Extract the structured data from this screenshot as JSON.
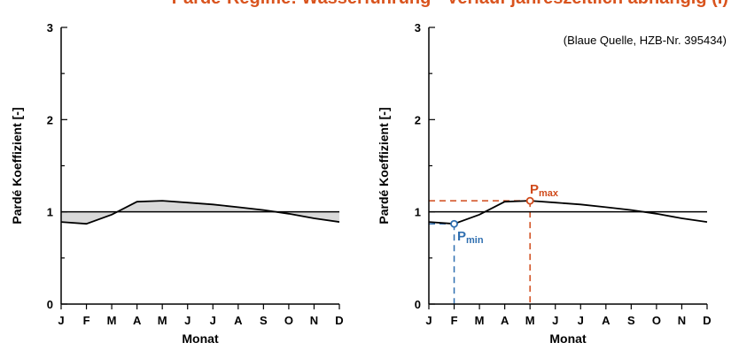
{
  "header": {
    "title": "Pardé-Regime: Wasserführung - Verlauf jahreszeitlich abhängig (I)",
    "subtitle": "(Blaue Quelle, HZB-Nr. 395434)",
    "title_color": "#d9541e"
  },
  "annotations": {
    "pmax": "P",
    "pmax_sub": "max",
    "pmin": "P",
    "pmin_sub": "min",
    "pmax_color": "#d04a1a",
    "pmin_color": "#2f6fb0"
  },
  "chart_data": [
    {
      "type": "area",
      "title": "",
      "xlabel": "Monat",
      "ylabel": "Pardé Koeffizient [-]",
      "categories": [
        "J",
        "F",
        "M",
        "A",
        "M",
        "J",
        "J",
        "A",
        "S",
        "O",
        "N",
        "D"
      ],
      "series": [
        {
          "values": [
            0.89,
            0.87,
            0.97,
            1.11,
            1.12,
            1.1,
            1.08,
            1.05,
            1.02,
            0.98,
            0.93,
            0.89
          ]
        }
      ],
      "reference_line": 1,
      "ylim": [
        0,
        3
      ],
      "yticks": [
        0,
        1,
        2,
        3
      ],
      "fill_color": "#d9d9d9",
      "grid": false
    },
    {
      "type": "line",
      "title": "",
      "xlabel": "Monat",
      "ylabel": "Pardé Koeffizient [-]",
      "categories": [
        "J",
        "F",
        "M",
        "A",
        "M",
        "J",
        "J",
        "A",
        "S",
        "O",
        "N",
        "D"
      ],
      "series": [
        {
          "values": [
            0.89,
            0.87,
            0.97,
            1.11,
            1.12,
            1.1,
            1.08,
            1.05,
            1.02,
            0.98,
            0.93,
            0.89
          ]
        }
      ],
      "reference_line": 1,
      "markers": {
        "pmax": {
          "month": "M",
          "value": 1.12
        },
        "pmin": {
          "month": "F",
          "value": 0.87
        }
      },
      "ylim": [
        0,
        3
      ],
      "yticks": [
        0,
        1,
        2,
        3
      ],
      "grid": false
    }
  ]
}
